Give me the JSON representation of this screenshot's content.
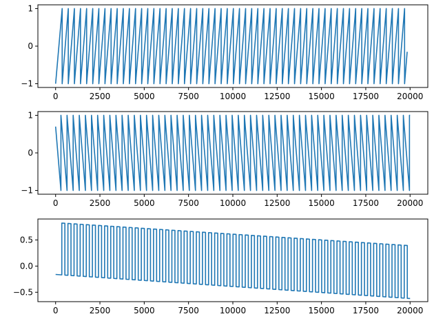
{
  "chart_data": [
    {
      "type": "line",
      "title": "",
      "xlabel": "",
      "ylabel": "",
      "xlim": [
        -1000,
        21000
      ],
      "ylim": [
        -1.1,
        1.1
      ],
      "xticks": [
        0,
        2500,
        5000,
        7500,
        10000,
        12500,
        15000,
        17500,
        20000
      ],
      "xtick_labels": [
        "0",
        "2500",
        "5000",
        "7500",
        "10000",
        "12500",
        "15000",
        "17500",
        "20000"
      ],
      "yticks": [
        -1,
        0,
        1
      ],
      "ytick_labels": [
        "−1",
        "0",
        "1"
      ],
      "grid": false,
      "series": [
        {
          "color": "#1f77b4",
          "description": "sawtooth wave rising from -1 to 1 then dropping, period approx 345, start -1 at x=0",
          "waveform": "sawtooth_rising",
          "x_start": 0,
          "x_end": 20000,
          "first_rise_end_x": 370,
          "period": 345,
          "min": -1,
          "max": 1,
          "end_value": -0.15
        }
      ]
    },
    {
      "type": "line",
      "title": "",
      "xlabel": "",
      "ylabel": "",
      "xlim": [
        -1000,
        21000
      ],
      "ylim": [
        -1.1,
        1.1
      ],
      "xticks": [
        0,
        2500,
        5000,
        7500,
        10000,
        12500,
        15000,
        17500,
        20000
      ],
      "xtick_labels": [
        "0",
        "2500",
        "5000",
        "7500",
        "10000",
        "12500",
        "15000",
        "17500",
        "20000"
      ],
      "yticks": [
        -1,
        0,
        1
      ],
      "ytick_labels": [
        "−1",
        "0",
        "1"
      ],
      "grid": false,
      "series": [
        {
          "color": "#1f77b4",
          "description": "sawtooth wave falling from 1 to -1 then jumping up, period approx 345, start 0.7 at x=0",
          "waveform": "sawtooth_falling",
          "x_start": 0,
          "x_end": 20000,
          "first_fall_end_x": 300,
          "period": 345,
          "start_value": 0.7,
          "min": -1,
          "max": 1,
          "end_value": 1
        }
      ]
    },
    {
      "type": "line",
      "title": "",
      "xlabel": "",
      "ylabel": "",
      "xlim": [
        -1000,
        21000
      ],
      "ylim": [
        -0.68,
        0.9
      ],
      "xticks": [
        0,
        2500,
        5000,
        7500,
        10000,
        12500,
        15000,
        17500,
        20000
      ],
      "xtick_labels": [
        "0",
        "2500",
        "5000",
        "7500",
        "10000",
        "12500",
        "15000",
        "17500",
        "20000"
      ],
      "yticks": [
        -0.5,
        0.0,
        0.5
      ],
      "ytick_labels": [
        "−0.5",
        "0.0",
        "0.5"
      ],
      "grid": false,
      "series": [
        {
          "color": "#1f77b4",
          "description": "square pulse train with decaying upper level and declining baseline",
          "waveform": "square_pulses",
          "x_start": 0,
          "x_end": 20000,
          "first_pulse_x": 350,
          "period": 345,
          "duty": 0.5,
          "baseline_start": -0.16,
          "baseline_end": -0.62,
          "top_start": 0.83,
          "top_end": 0.39
        }
      ]
    }
  ]
}
